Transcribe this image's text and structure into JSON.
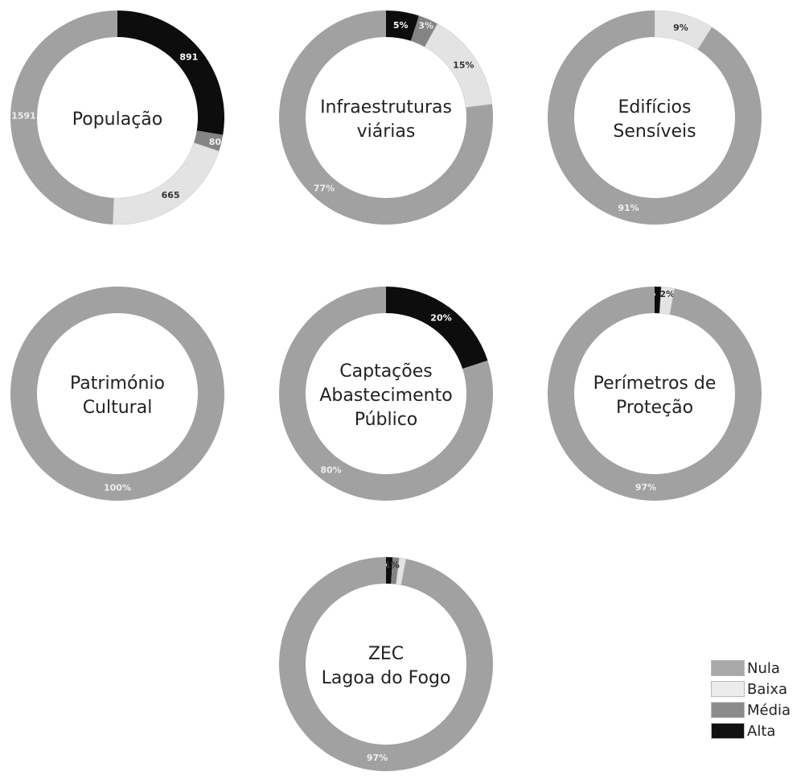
{
  "colors": {
    "Nula": "#a8a8a8",
    "Baixa": "#ececec",
    "Média": "#8a8a8a",
    "Alta": "#111111",
    "inner_text": "#222222"
  },
  "legend": {
    "items": [
      {
        "label": "Nula",
        "color": "#a8a8a8"
      },
      {
        "label": "Baixa",
        "color": "#ececec"
      },
      {
        "label": "Média",
        "color": "#8a8a8a"
      },
      {
        "label": "Alta",
        "color": "#111111"
      }
    ]
  },
  "chart_data": [
    {
      "type": "pie",
      "variant": "donut",
      "center_label": [
        "População"
      ],
      "categories": [
        "Alta",
        "Média",
        "Baixa",
        "Nula"
      ],
      "values": [
        891,
        80,
        665,
        1591
      ],
      "data_labels": [
        "891",
        "80",
        "665",
        "1591"
      ]
    },
    {
      "type": "pie",
      "variant": "donut",
      "center_label": [
        "Infraestruturas",
        "viárias"
      ],
      "categories": [
        "Alta",
        "Média",
        "Baixa",
        "Nula"
      ],
      "values": [
        5,
        3,
        15,
        77
      ],
      "data_labels": [
        "5%",
        "3%",
        "15%",
        "77%"
      ]
    },
    {
      "type": "pie",
      "variant": "donut",
      "center_label": [
        "Edifícios",
        "Sensíveis"
      ],
      "categories": [
        "Baixa",
        "Nula"
      ],
      "values": [
        9,
        91
      ],
      "data_labels": [
        "9%",
        "91%"
      ]
    },
    {
      "type": "pie",
      "variant": "donut",
      "center_label": [
        "Património",
        "Cultural"
      ],
      "categories": [
        "Nula"
      ],
      "values": [
        100
      ],
      "data_labels": [
        "100%"
      ]
    },
    {
      "type": "pie",
      "variant": "donut",
      "center_label": [
        "Captações",
        "Abastecimento",
        "Público"
      ],
      "categories": [
        "Alta",
        "Nula"
      ],
      "values": [
        20,
        80
      ],
      "data_labels": [
        "20%",
        "80%"
      ]
    },
    {
      "type": "pie",
      "variant": "donut",
      "center_label": [
        "Perímetros de",
        "Proteção"
      ],
      "categories": [
        "Alta",
        "Baixa",
        "Nula"
      ],
      "values": [
        1,
        2,
        97
      ],
      "data_labels": [
        "1%",
        "2%",
        "97%"
      ]
    },
    {
      "type": "pie",
      "variant": "donut",
      "center_label": [
        "ZEC",
        "Lagoa do Fogo"
      ],
      "categories": [
        "Alta",
        "Média",
        "Baixa",
        "Nula"
      ],
      "values": [
        1,
        1,
        1,
        97
      ],
      "data_labels": [
        "1%",
        "1%",
        "1%",
        "97%"
      ]
    }
  ]
}
